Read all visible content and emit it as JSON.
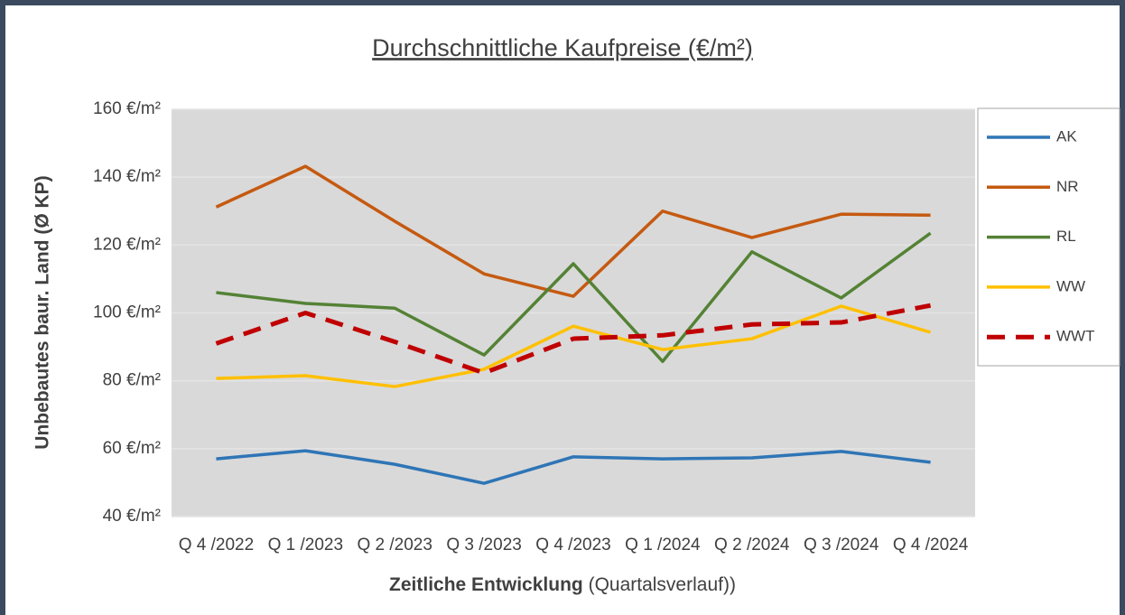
{
  "chart_data": {
    "type": "line",
    "title": "Durchschnittliche Kaufpreise (€/m²)",
    "ylabel": "Unbebautes baur. Land (Ø KP)",
    "xlabel": [
      "Zeitliche Entwicklung",
      "(Quartalsverlauf))"
    ],
    "categories": [
      "Q 4 /2022",
      "Q 1 /2023",
      "Q 2 /2023",
      "Q 3 /2023",
      "Q 4 /2023",
      "Q 1 /2024",
      "Q 2 /2024",
      "Q 3 /2024",
      "Q 4 /2024"
    ],
    "series": [
      {
        "name": "AK",
        "color": "#2e75b6",
        "values": [
          57,
          59.4,
          55.4,
          49.8,
          57.6,
          57,
          57.3,
          59.2,
          56
        ]
      },
      {
        "name": "NR",
        "color": "#c55a11",
        "values": [
          131.2,
          143.2,
          127,
          111.5,
          104.9,
          130,
          122.2,
          129.1,
          128.8
        ]
      },
      {
        "name": "RL",
        "color": "#548235",
        "values": [
          106,
          102.8,
          101.4,
          87.6,
          114.5,
          85.7,
          118,
          104.4,
          123.5
        ]
      },
      {
        "name": "WW",
        "color": "#ffc000",
        "values": [
          80.7,
          81.5,
          78.3,
          83.4,
          96.1,
          89.2,
          92.4,
          102,
          94.3
        ]
      },
      {
        "name": "WWT",
        "color": "#c00000",
        "dashed": true,
        "values": [
          91,
          100,
          91.5,
          82.3,
          92.4,
          93.4,
          96.6,
          97.2,
          102.2
        ]
      }
    ],
    "ylim": [
      40,
      160
    ],
    "yticks": [
      {
        "value": 40,
        "label": "40 €/m²"
      },
      {
        "value": 60,
        "label": "60 €/m²"
      },
      {
        "value": 80,
        "label": "80 €/m²"
      },
      {
        "value": 100,
        "label": "100 €/m²"
      },
      {
        "value": 120,
        "label": "120 €/m²"
      },
      {
        "value": 140,
        "label": "140 €/m²"
      },
      {
        "value": 160,
        "label": "160 €/m²"
      }
    ],
    "grid": true,
    "legend": "right"
  }
}
